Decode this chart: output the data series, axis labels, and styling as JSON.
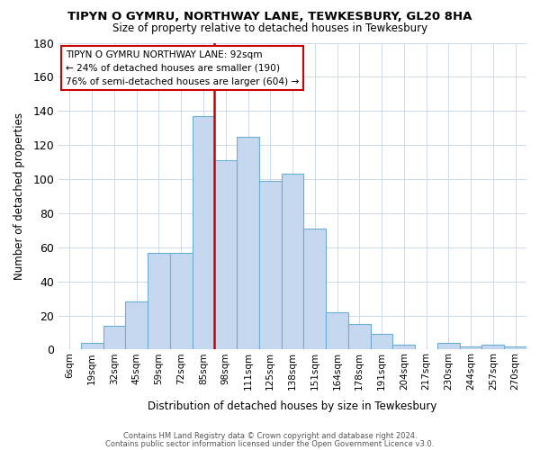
{
  "title": "TIPYN O GYMRU, NORTHWAY LANE, TEWKESBURY, GL20 8HA",
  "subtitle": "Size of property relative to detached houses in Tewkesbury",
  "xlabel": "Distribution of detached houses by size in Tewkesbury",
  "ylabel": "Number of detached properties",
  "bar_labels": [
    "6sqm",
    "19sqm",
    "32sqm",
    "45sqm",
    "59sqm",
    "72sqm",
    "85sqm",
    "98sqm",
    "111sqm",
    "125sqm",
    "138sqm",
    "151sqm",
    "164sqm",
    "178sqm",
    "191sqm",
    "204sqm",
    "217sqm",
    "230sqm",
    "244sqm",
    "257sqm",
    "270sqm"
  ],
  "bar_values": [
    0,
    4,
    14,
    28,
    57,
    57,
    137,
    111,
    125,
    99,
    103,
    71,
    22,
    15,
    9,
    3,
    0,
    4,
    2,
    3,
    2
  ],
  "bar_color": "#c5d8f0",
  "bar_edge_color": "#6baed6",
  "vline_color": "#cc0000",
  "vline_x": 6.5,
  "annotation_title": "TIPYN O GYMRU NORTHWAY LANE: 92sqm",
  "annotation_line1": "← 24% of detached houses are smaller (190)",
  "annotation_line2": "76% of semi-detached houses are larger (604) →",
  "annotation_box_color": "#ffffff",
  "annotation_box_edge": "#cc0000",
  "ylim": [
    0,
    180
  ],
  "yticks": [
    0,
    20,
    40,
    60,
    80,
    100,
    120,
    140,
    160,
    180
  ],
  "footer1": "Contains HM Land Registry data © Crown copyright and database right 2024.",
  "footer2": "Contains public sector information licensed under the Open Government Licence v3.0.",
  "background_color": "#ffffff",
  "grid_color": "#cdd8ea"
}
